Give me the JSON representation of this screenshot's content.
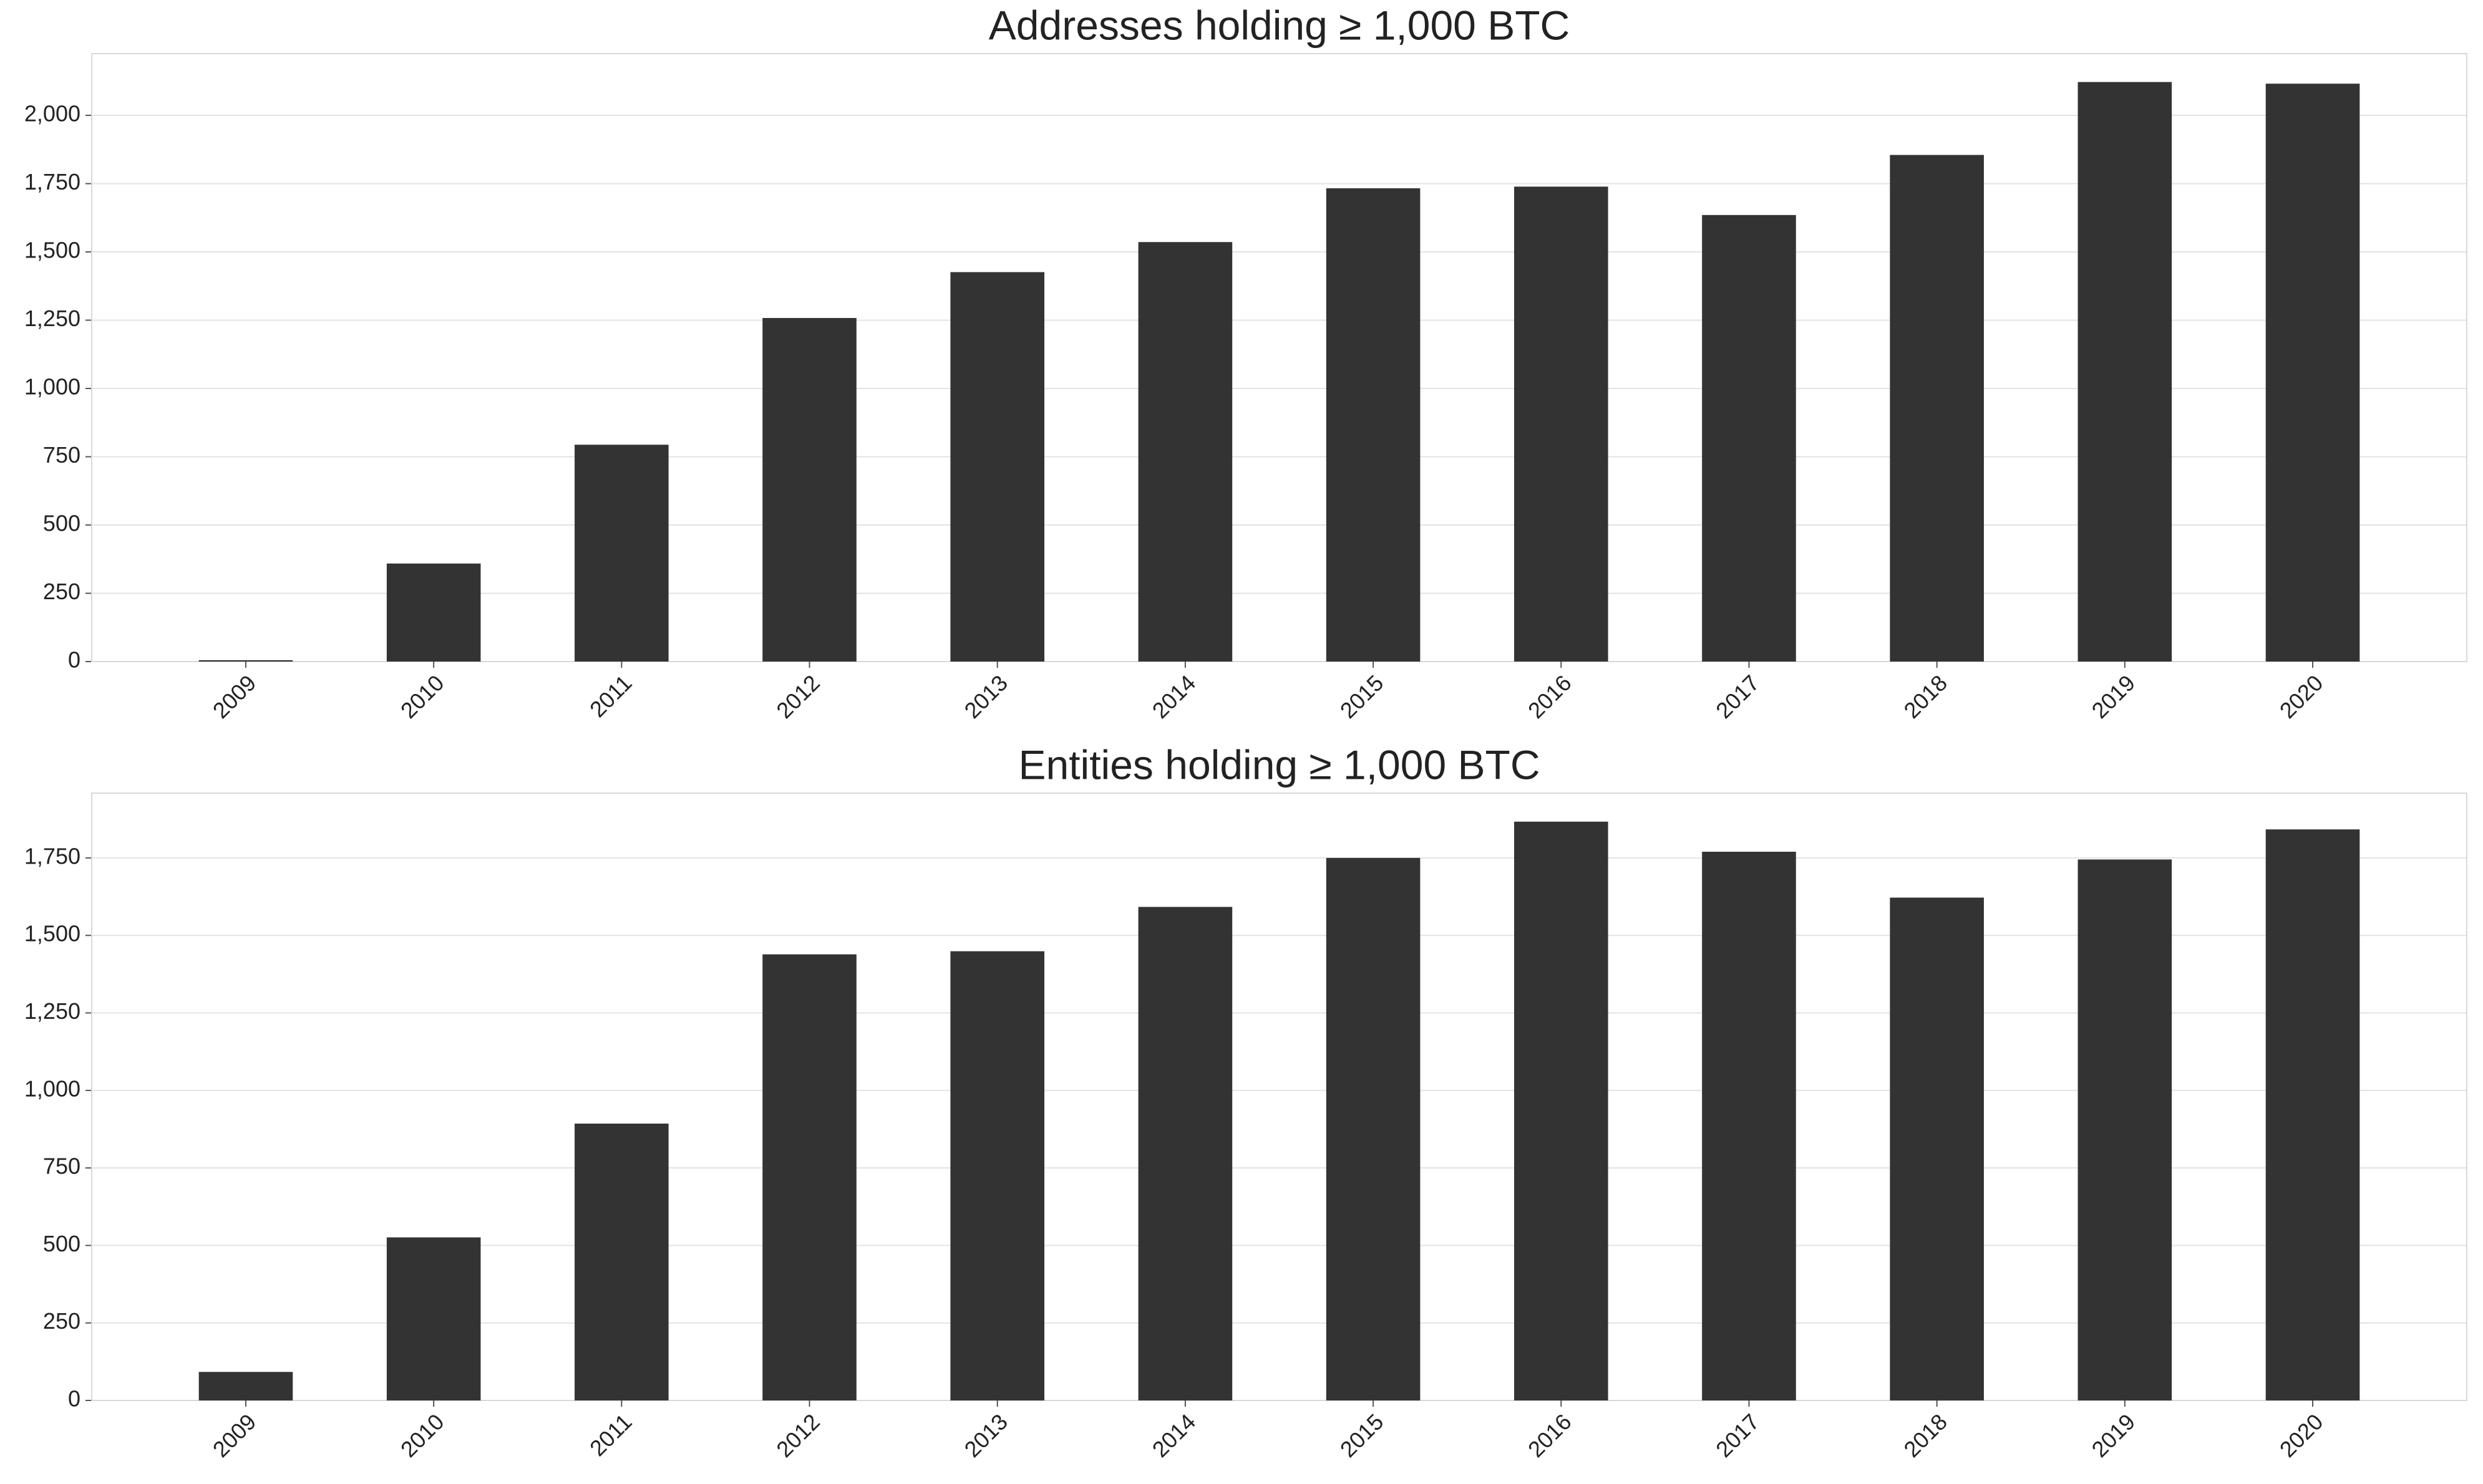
{
  "chart_data": [
    {
      "type": "bar",
      "title": "Addresses holding ≥ 1,000 BTC",
      "categories": [
        "2009",
        "2010",
        "2011",
        "2012",
        "2013",
        "2014",
        "2015",
        "2016",
        "2017",
        "2018",
        "2019",
        "2020"
      ],
      "values": [
        5,
        359,
        794,
        1258,
        1426,
        1536,
        1733,
        1739,
        1635,
        1855,
        2122,
        2116
      ],
      "color": "#333333",
      "ylim": [
        0,
        2226
      ],
      "yticks": [
        0,
        250,
        500,
        750,
        {
          "value": 1000,
          "label": "1,000"
        },
        {
          "value": 1250,
          "label": "1,250"
        },
        {
          "value": 1500,
          "label": "1,500"
        },
        {
          "value": 1750,
          "label": "1,750"
        },
        {
          "value": 2000,
          "label": "2,000"
        }
      ],
      "grid": true
    },
    {
      "type": "bar",
      "title": "Entities holding ≥ 1,000 BTC",
      "categories": [
        "2009",
        "2010",
        "2011",
        "2012",
        "2013",
        "2014",
        "2015",
        "2016",
        "2017",
        "2018",
        "2019",
        "2020"
      ],
      "values": [
        92,
        526,
        893,
        1439,
        1449,
        1592,
        1750,
        1867,
        1770,
        1622,
        1745,
        1842
      ],
      "color": "#333333",
      "ylim": [
        0,
        1959
      ],
      "yticks": [
        0,
        250,
        500,
        750,
        {
          "value": 1000,
          "label": "1,000"
        },
        {
          "value": 1250,
          "label": "1,250"
        },
        {
          "value": 1500,
          "label": "1,500"
        },
        {
          "value": 1750,
          "label": "1,750"
        }
      ],
      "grid": true
    }
  ]
}
